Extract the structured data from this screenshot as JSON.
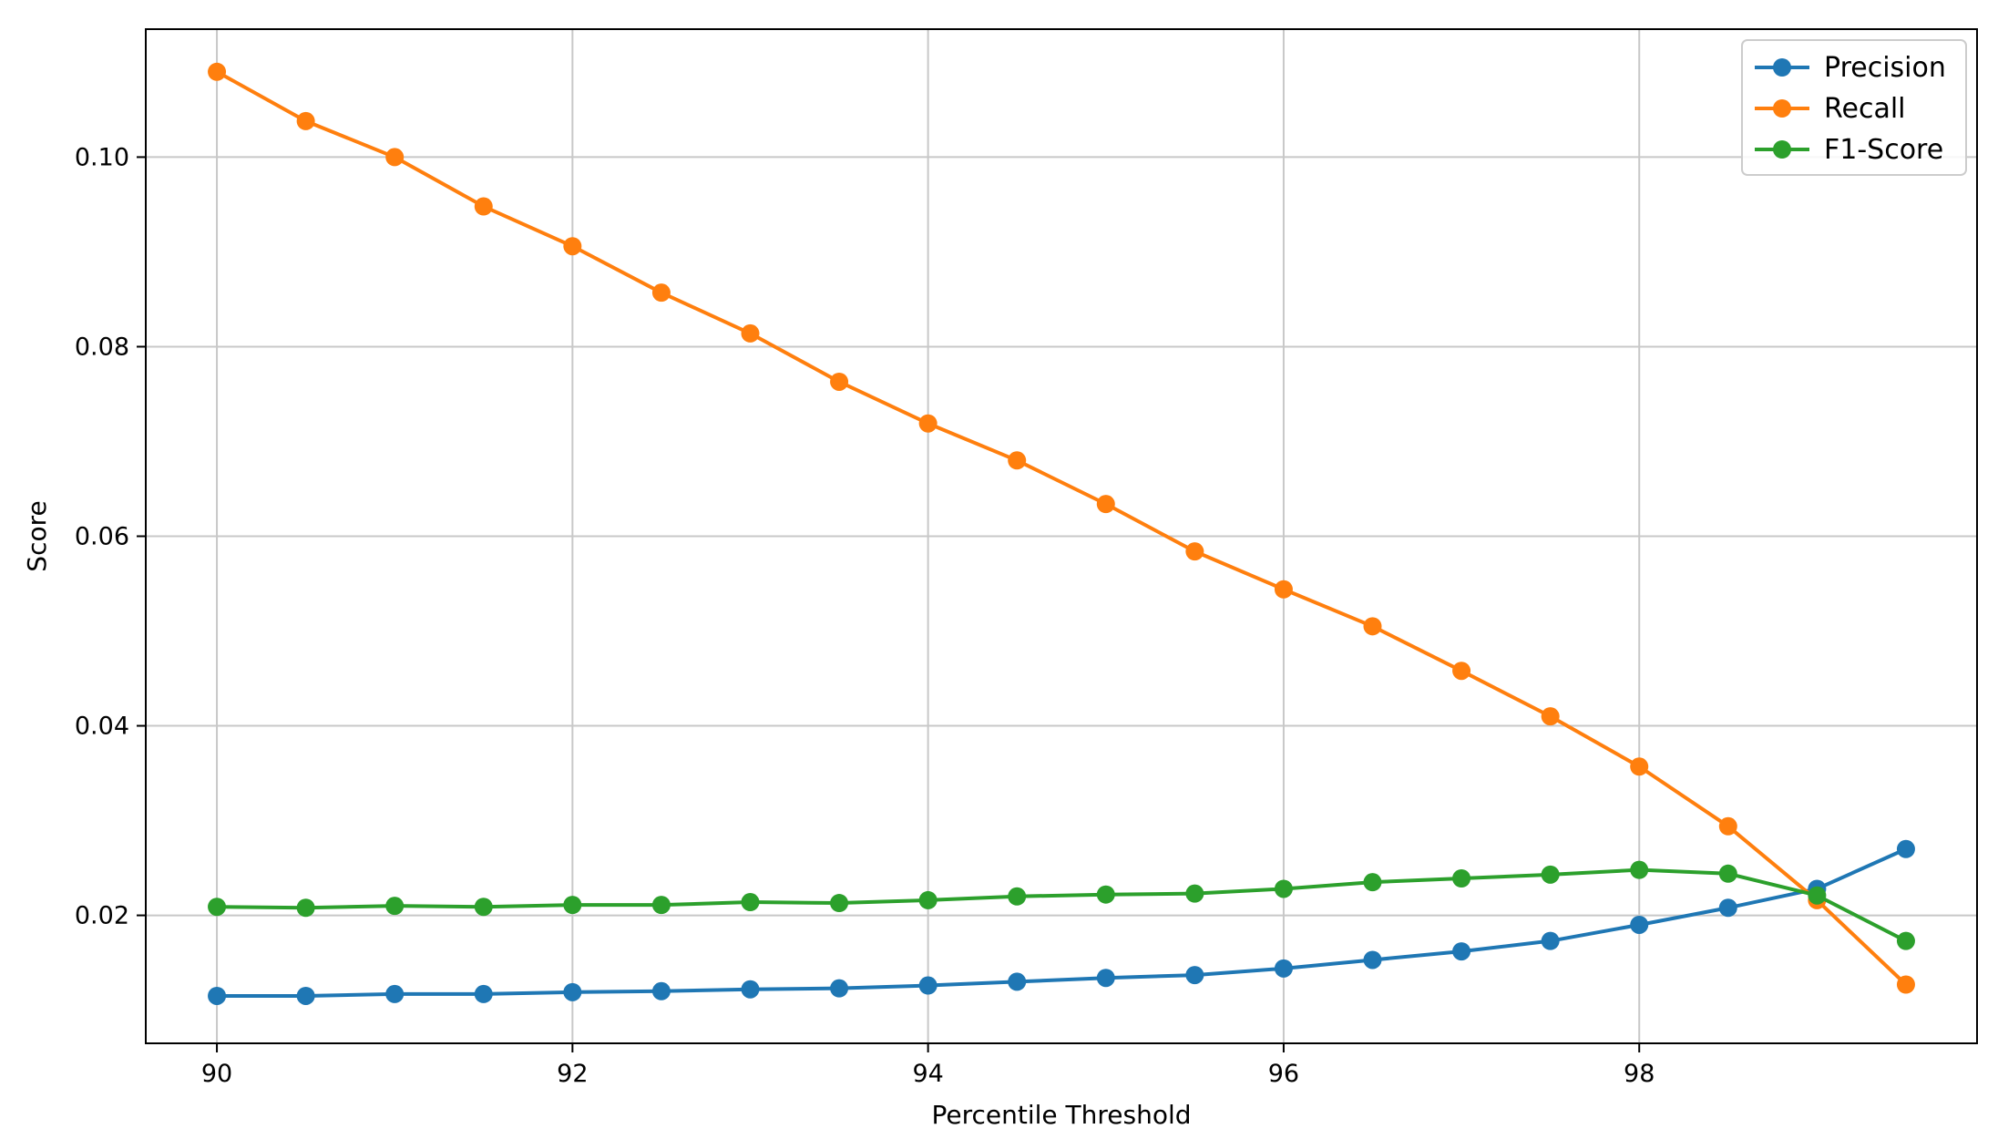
{
  "chart_data": {
    "type": "line",
    "xlabel": "Percentile Threshold",
    "ylabel": "Score",
    "xlim": [
      89.6,
      99.9
    ],
    "ylim": [
      0.0065,
      0.1135
    ],
    "xticks": [
      90,
      92,
      94,
      96,
      98
    ],
    "xtick_labels": [
      "90",
      "92",
      "94",
      "96",
      "98"
    ],
    "yticks": [
      0.02,
      0.04,
      0.06,
      0.08,
      0.1
    ],
    "ytick_labels": [
      "0.02",
      "0.04",
      "0.06",
      "0.08",
      "0.10"
    ],
    "grid": true,
    "legend_position": "top-right",
    "x": [
      90,
      90.5,
      91,
      91.5,
      92,
      92.5,
      93,
      93.5,
      94,
      94.5,
      95,
      95.5,
      96,
      96.5,
      97,
      97.5,
      98,
      98.5,
      99,
      99.5
    ],
    "series": [
      {
        "name": "Precision",
        "color": "#1f77b4",
        "values": [
          0.0115,
          0.0115,
          0.0117,
          0.0117,
          0.0119,
          0.012,
          0.0122,
          0.0123,
          0.0126,
          0.013,
          0.0134,
          0.0137,
          0.0144,
          0.0153,
          0.0162,
          0.0173,
          0.019,
          0.0208,
          0.0228,
          0.027
        ]
      },
      {
        "name": "Recall",
        "color": "#ff7f0e",
        "values": [
          0.109,
          0.1038,
          0.1,
          0.0948,
          0.0906,
          0.0857,
          0.0814,
          0.0763,
          0.0719,
          0.068,
          0.0634,
          0.0584,
          0.0544,
          0.0505,
          0.0458,
          0.041,
          0.0357,
          0.0294,
          0.0216,
          0.0127
        ]
      },
      {
        "name": "F1-Score",
        "color": "#2ca02c",
        "values": [
          0.0209,
          0.0208,
          0.021,
          0.0209,
          0.0211,
          0.0211,
          0.0214,
          0.0213,
          0.0216,
          0.022,
          0.0222,
          0.0223,
          0.0228,
          0.0235,
          0.0239,
          0.0243,
          0.0248,
          0.0244,
          0.0221,
          0.0173
        ]
      }
    ]
  }
}
